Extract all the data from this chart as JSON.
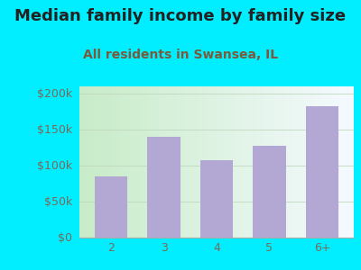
{
  "title": "Median family income by family size",
  "subtitle": "All residents in Swansea, IL",
  "categories": [
    "2",
    "3",
    "4",
    "5",
    "6+"
  ],
  "values": [
    85000,
    140000,
    108000,
    128000,
    183000
  ],
  "bar_color": "#b3a8d4",
  "outer_bg": "#00eeff",
  "plot_bg_left": "#c8ecc8",
  "plot_bg_right": "#f5faff",
  "title_color": "#222222",
  "subtitle_color": "#7a5a3a",
  "tick_color": "#7a6a5a",
  "ylim": [
    0,
    210000
  ],
  "yticks": [
    0,
    50000,
    100000,
    150000,
    200000
  ],
  "ytick_labels": [
    "$0",
    "$50k",
    "$100k",
    "$150k",
    "$200k"
  ],
  "title_fontsize": 13,
  "subtitle_fontsize": 10,
  "tick_fontsize": 9,
  "grid_color": "#c0d8c0",
  "grid_linewidth": 0.6
}
